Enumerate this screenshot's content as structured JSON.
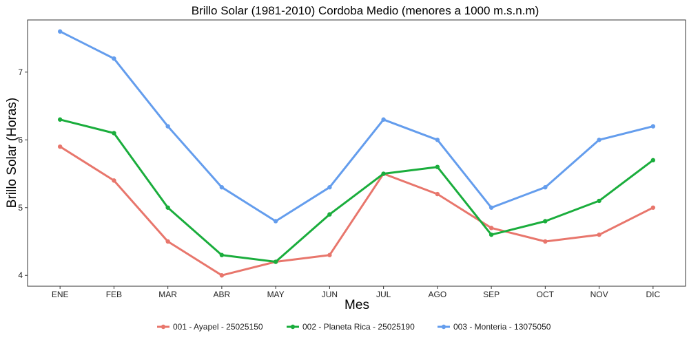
{
  "chart_data": {
    "type": "line",
    "title": "Brillo Solar (1981-2010) Cordoba Medio (menores a 1000 m.s.n.m)",
    "xlabel": "Mes",
    "ylabel": "Brillo Solar (Horas)",
    "categories": [
      "ENE",
      "FEB",
      "MAR",
      "ABR",
      "MAY",
      "JUN",
      "JUL",
      "AGO",
      "SEP",
      "OCT",
      "NOV",
      "DIC"
    ],
    "yticks": [
      4,
      5,
      6,
      7
    ],
    "ylim": [
      3.84,
      7.77
    ],
    "grid": false,
    "legend_position": "bottom",
    "series": [
      {
        "name": "001 - Ayapel - 25025150",
        "color": "#E8766C",
        "values": [
          5.9,
          5.4,
          4.5,
          4.0,
          4.2,
          4.3,
          5.5,
          5.2,
          4.7,
          4.5,
          4.6,
          5.0
        ]
      },
      {
        "name": "002 - Planeta Rica - 25025190",
        "color": "#1AAD3C",
        "values": [
          6.3,
          6.1,
          5.0,
          4.3,
          4.2,
          4.9,
          5.5,
          5.6,
          4.6,
          4.8,
          5.1,
          5.7
        ]
      },
      {
        "name": "003 - Monteria - 13075050",
        "color": "#649DED",
        "values": [
          7.6,
          7.2,
          6.2,
          5.3,
          4.8,
          5.3,
          6.3,
          6.0,
          5.0,
          5.3,
          6.0,
          6.2
        ]
      }
    ]
  }
}
